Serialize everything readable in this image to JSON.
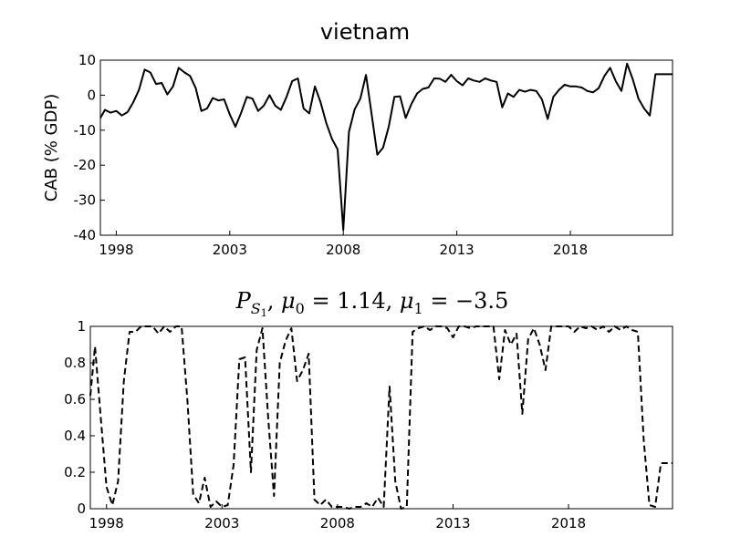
{
  "chart_data": [
    {
      "type": "line",
      "title": "vietnam",
      "xlabel": "",
      "ylabel": "CAB (% GDP)",
      "xlim": [
        1997.3,
        2022.5
      ],
      "ylim": [
        -40,
        10
      ],
      "xticks": [
        1998,
        2003,
        2008,
        2013,
        2018
      ],
      "yticks": [
        10,
        0,
        -10,
        -20,
        -30,
        -40
      ],
      "ytick_labels": [
        "10",
        "0",
        "-10",
        "-20",
        "-30",
        "-40"
      ],
      "grid": false,
      "series": [
        {
          "line_style": "solid",
          "color": "#000000",
          "x": [
            1997.3,
            1997.5,
            1997.75,
            1998.0,
            1998.25,
            1998.5,
            1998.75,
            1999.0,
            1999.25,
            1999.5,
            1999.75,
            2000.0,
            2000.25,
            2000.5,
            2000.75,
            2001.0,
            2001.25,
            2001.5,
            2001.75,
            2002.0,
            2002.25,
            2002.5,
            2002.75,
            2003.0,
            2003.25,
            2003.5,
            2003.75,
            2004.0,
            2004.25,
            2004.5,
            2004.75,
            2005.0,
            2005.25,
            2005.5,
            2005.75,
            2006.0,
            2006.25,
            2006.5,
            2006.75,
            2007.0,
            2007.25,
            2007.5,
            2007.75,
            2008.0,
            2008.25,
            2008.5,
            2008.75,
            2009.0,
            2009.25,
            2009.5,
            2009.75,
            2010.0,
            2010.25,
            2010.5,
            2010.75,
            2011.0,
            2011.25,
            2011.5,
            2011.75,
            2012.0,
            2012.25,
            2012.5,
            2012.75,
            2013.0,
            2013.25,
            2013.5,
            2013.75,
            2014.0,
            2014.25,
            2014.5,
            2014.75,
            2015.0,
            2015.25,
            2015.5,
            2015.75,
            2016.0,
            2016.25,
            2016.5,
            2016.75,
            2017.0,
            2017.25,
            2017.5,
            2017.75,
            2018.0,
            2018.25,
            2018.5,
            2018.75,
            2019.0,
            2019.25,
            2019.5,
            2019.75,
            2020.0,
            2020.25,
            2020.5,
            2020.75,
            2021.0,
            2021.25,
            2021.5,
            2021.75,
            2022.0,
            2022.25,
            2022.5
          ],
          "y": [
            -6.5,
            -4.2,
            -5.0,
            -4.5,
            -5.8,
            -4.8,
            -2.0,
            1.5,
            7.3,
            6.5,
            3.2,
            3.5,
            0.2,
            2.5,
            7.8,
            6.5,
            5.5,
            2.0,
            -4.5,
            -3.8,
            -0.8,
            -1.5,
            -1.2,
            -5.5,
            -9.0,
            -5.0,
            -0.5,
            -1.0,
            -4.5,
            -3.0,
            0.0,
            -3.0,
            -4.2,
            -0.5,
            4.0,
            4.8,
            -3.8,
            -5.2,
            2.5,
            -2.0,
            -8.0,
            -12.5,
            -15.5,
            -38.5,
            -10.5,
            -4.0,
            -1.0,
            5.8,
            -5.5,
            -17.0,
            -15.0,
            -9.0,
            -0.5,
            -0.3,
            -6.5,
            -2.5,
            0.5,
            1.8,
            2.2,
            4.8,
            4.7,
            3.8,
            5.8,
            4.0,
            2.8,
            4.8,
            4.2,
            3.8,
            4.8,
            4.2,
            3.8,
            -3.5,
            0.5,
            -0.5,
            1.5,
            1.0,
            1.5,
            1.2,
            -1.2,
            -6.8,
            -0.5,
            1.5,
            3.0,
            2.5,
            2.5,
            2.2,
            1.2,
            0.8,
            2.0,
            5.5,
            7.8,
            4.0,
            1.2,
            9.0,
            4.5,
            -1.0,
            -3.8,
            -5.8,
            6.0,
            6.0,
            6.0,
            6.0
          ]
        }
      ]
    },
    {
      "type": "line",
      "title": "",
      "title_math": {
        "P": "P",
        "sub": "S",
        "subsub": "1",
        "mu0": "μ",
        "mu0_sub": "0",
        "eq": " = 1.14, ",
        "mu1": "μ",
        "mu1_sub": "1",
        "eq2": " = −3.5"
      },
      "xlabel": "",
      "ylabel": "",
      "xlim": [
        1997.3,
        2022.5
      ],
      "ylim": [
        0,
        1
      ],
      "xticks": [
        1998,
        2003,
        2008,
        2013,
        2018
      ],
      "yticks": [
        1,
        0.8,
        0.6,
        0.4,
        0.2,
        0
      ],
      "ytick_labels": [
        "1",
        "0.8",
        "0.6",
        "0.4",
        "0.2",
        "0"
      ],
      "grid": false,
      "series": [
        {
          "line_style": "dashed",
          "color": "#000000",
          "x": [
            1997.3,
            1997.5,
            1997.75,
            1998.0,
            1998.25,
            1998.5,
            1998.75,
            1999.0,
            1999.25,
            1999.5,
            1999.75,
            2000.0,
            2000.25,
            2000.5,
            2000.75,
            2001.0,
            2001.25,
            2001.5,
            2001.75,
            2002.0,
            2002.25,
            2002.5,
            2002.75,
            2003.0,
            2003.25,
            2003.5,
            2003.75,
            2004.0,
            2004.25,
            2004.5,
            2004.75,
            2005.0,
            2005.25,
            2005.5,
            2005.75,
            2006.0,
            2006.25,
            2006.5,
            2006.75,
            2007.0,
            2007.25,
            2007.5,
            2007.75,
            2008.0,
            2008.25,
            2008.5,
            2008.75,
            2009.0,
            2009.25,
            2009.5,
            2009.75,
            2010.0,
            2010.25,
            2010.5,
            2010.75,
            2011.0,
            2011.25,
            2011.5,
            2011.75,
            2012.0,
            2012.25,
            2012.5,
            2012.75,
            2013.0,
            2013.25,
            2013.5,
            2013.75,
            2014.0,
            2014.25,
            2014.5,
            2014.75,
            2015.0,
            2015.25,
            2015.5,
            2015.75,
            2016.0,
            2016.25,
            2016.5,
            2016.75,
            2017.0,
            2017.25,
            2017.5,
            2017.75,
            2018.0,
            2018.25,
            2018.5,
            2018.75,
            2019.0,
            2019.25,
            2019.5,
            2019.75,
            2020.0,
            2020.25,
            2020.5,
            2020.75,
            2021.0,
            2021.25,
            2021.5,
            2021.75,
            2022.0,
            2022.25,
            2022.5
          ],
          "y": [
            0.62,
            0.89,
            0.5,
            0.12,
            0.02,
            0.15,
            0.7,
            0.97,
            0.97,
            1.0,
            1.0,
            1.0,
            0.96,
            1.0,
            0.97,
            1.0,
            1.0,
            0.6,
            0.08,
            0.03,
            0.17,
            0.01,
            0.04,
            0.01,
            0.02,
            0.24,
            0.82,
            0.83,
            0.2,
            0.87,
            0.99,
            0.5,
            0.07,
            0.8,
            0.92,
            0.99,
            0.7,
            0.76,
            0.85,
            0.05,
            0.02,
            0.05,
            0.01,
            0.01,
            0.01,
            0.0,
            0.01,
            0.01,
            0.03,
            0.01,
            0.06,
            0.01,
            0.67,
            0.15,
            0.0,
            0.01,
            0.97,
            0.99,
            1.0,
            0.98,
            1.0,
            1.0,
            0.99,
            0.94,
            1.0,
            1.0,
            0.99,
            1.0,
            1.0,
            1.0,
            1.0,
            0.71,
            0.98,
            0.9,
            0.96,
            0.52,
            0.93,
            0.99,
            0.9,
            0.76,
            1.0,
            1.0,
            1.0,
            1.0,
            0.97,
            1.0,
            0.99,
            1.0,
            0.98,
            1.0,
            0.97,
            1.0,
            0.98,
            1.0,
            0.98,
            0.97,
            0.38,
            0.02,
            0.01,
            0.25,
            0.25,
            0.25
          ]
        }
      ]
    }
  ]
}
